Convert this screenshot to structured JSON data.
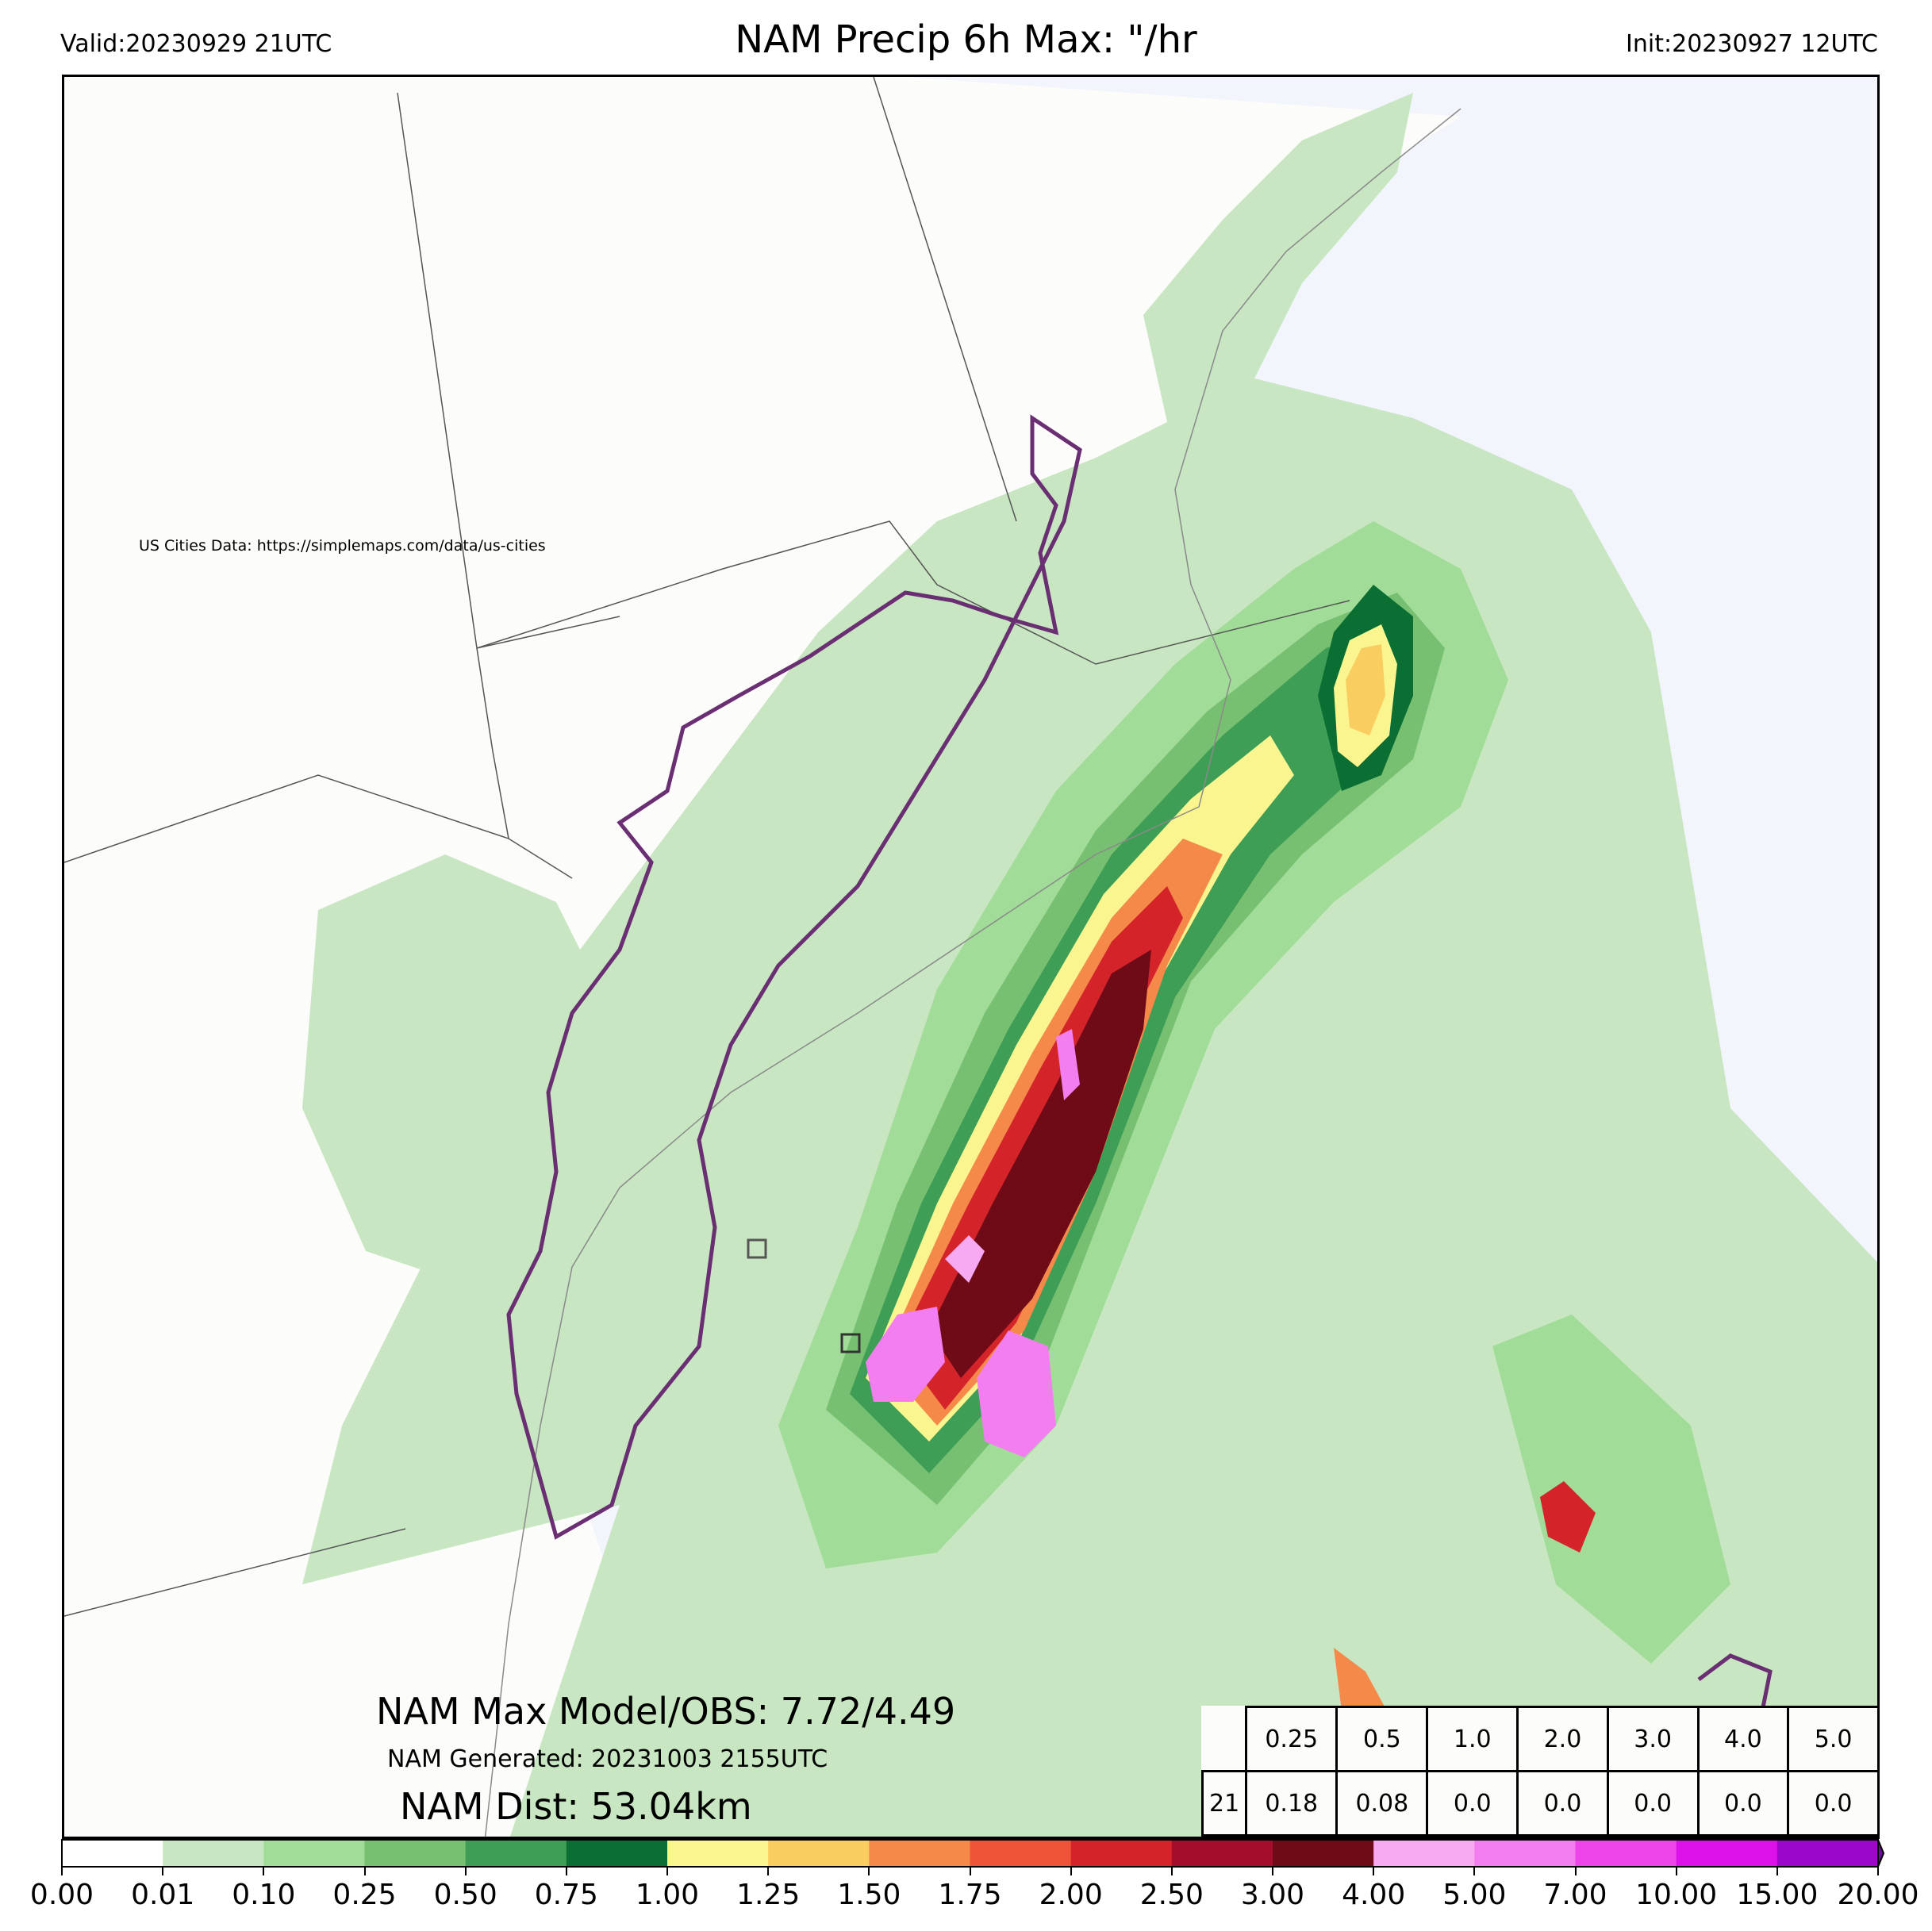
{
  "header": {
    "valid": "Valid:20230929 21UTC",
    "title": "NAM Precip 6h Max: \"/hr",
    "init": "Init:20230927 12UTC"
  },
  "credit": "US Cities Data: https://simplemaps.com/data/us-cities",
  "stats": {
    "max_line": "NAM Max Model/OBS: 7.72/4.49",
    "generated": "NAM Generated: 20231003 2155UTC",
    "dist": "NAM Dist: 53.04km"
  },
  "threshold_table": {
    "thresholds": [
      "0.25",
      "0.5",
      "1.0",
      "2.0",
      "3.0",
      "4.0",
      "5.0"
    ],
    "row_label": "21",
    "values": [
      "0.18",
      "0.08",
      "0.0",
      "0.0",
      "0.0",
      "0.0",
      "0.0"
    ]
  },
  "colorbar": {
    "ticks": [
      "0.00",
      "0.01",
      "0.10",
      "0.25",
      "0.50",
      "0.75",
      "1.00",
      "1.25",
      "1.50",
      "1.75",
      "2.00",
      "2.50",
      "3.00",
      "4.00",
      "5.00",
      "7.00",
      "10.00",
      "15.00",
      "20.00"
    ],
    "colors": [
      "#ffffff",
      "#c7e6c1",
      "#a1dc98",
      "#77c071",
      "#3e9e55",
      "#0b6e33",
      "#fbf58f",
      "#f9cd5f",
      "#f5894a",
      "#ef5338",
      "#d4242a",
      "#a40e2c",
      "#6e0b16",
      "#f7a9f2",
      "#f37ef0",
      "#ee45ea",
      "#dd12eb",
      "#9a08c9"
    ],
    "extend_color": "#6e0b9c"
  },
  "map_colors": {
    "land": "#fcfcfa",
    "ocean": "#f2f5fb",
    "border": "#555555",
    "outline": "#6a2f72"
  }
}
